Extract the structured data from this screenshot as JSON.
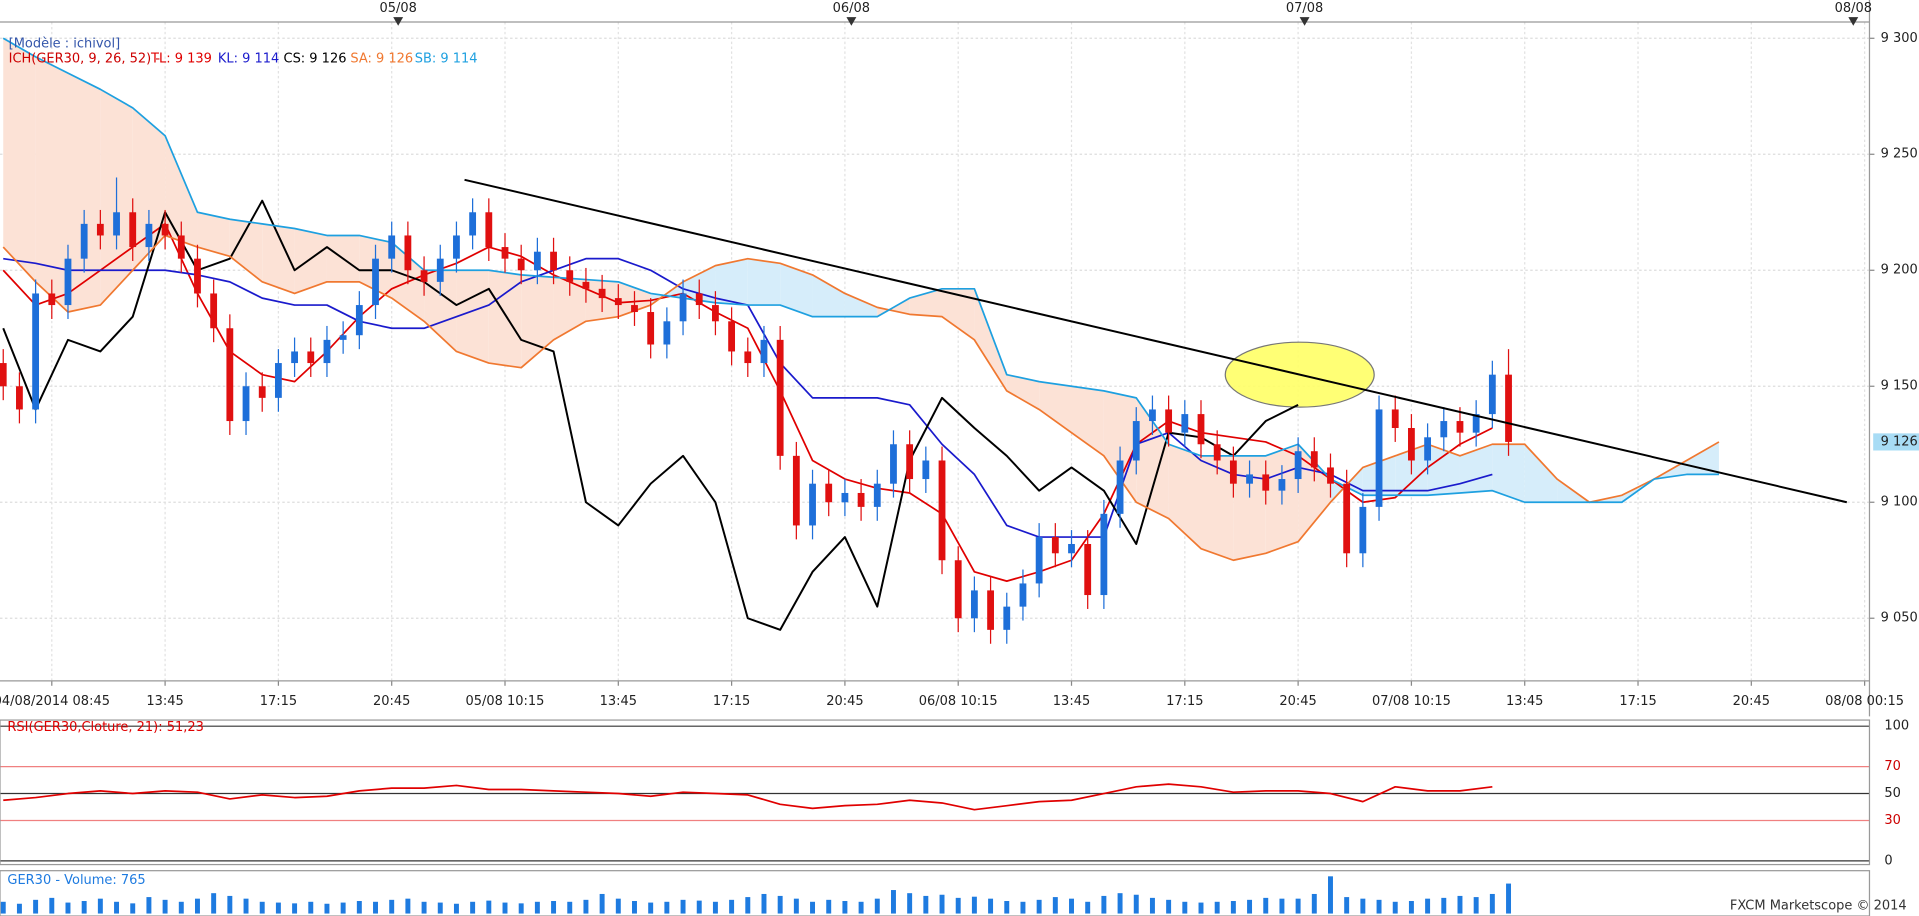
{
  "chart_data": {
    "type": "candlestick",
    "header": "[Modèle : ichivol]",
    "indicator": "ICH(GER30, 9, 26, 52) -",
    "footer": "FXCM Marketscope © 2014",
    "xlim": [
      -3.2,
      112.3
    ],
    "ylim": [
      9023,
      9307
    ],
    "grid": true,
    "yticks": [
      {
        "value": 9050,
        "label": "9 050"
      },
      {
        "value": 9100,
        "label": "9 100"
      },
      {
        "value": 9150,
        "label": "9 150"
      },
      {
        "value": 9200,
        "label": "9 200"
      },
      {
        "value": 9250,
        "label": "9 250"
      },
      {
        "value": 9300,
        "label": "9 300"
      }
    ],
    "xticks": [
      {
        "value": 0,
        "label": "04/08/2014 08:45"
      },
      {
        "value": 7,
        "label": "13:45"
      },
      {
        "value": 14,
        "label": "17:15"
      },
      {
        "value": 21,
        "label": "20:45"
      },
      {
        "value": 28,
        "label": "05/08 10:15"
      },
      {
        "value": 35,
        "label": "13:45"
      },
      {
        "value": 42,
        "label": "17:15"
      },
      {
        "value": 49,
        "label": "20:45"
      },
      {
        "value": 56,
        "label": "06/08 10:15"
      },
      {
        "value": 63,
        "label": "13:45"
      },
      {
        "value": 70,
        "label": "17:15"
      },
      {
        "value": 77,
        "label": "20:45"
      },
      {
        "value": 84,
        "label": "07/08 10:15"
      },
      {
        "value": 91,
        "label": "13:45"
      },
      {
        "value": 98,
        "label": "17:15"
      },
      {
        "value": 105,
        "label": "20:45"
      },
      {
        "value": 112,
        "label": "08/08 00:15"
      }
    ],
    "top_ticks": [
      {
        "value": 21.4,
        "label": "05/08"
      },
      {
        "value": 49.4,
        "label": "06/08"
      },
      {
        "value": 77.4,
        "label": "07/08"
      },
      {
        "value": 111.3,
        "label": "08/08"
      }
    ],
    "last_price": {
      "value": 9126,
      "label": "9 126",
      "color": "#a8dcf5"
    },
    "candles": {
      "up_color": "#1e6fd9",
      "down_color": "#e01010",
      "x": [
        -3,
        -2,
        -1,
        0,
        1,
        2,
        3,
        4,
        5,
        6,
        7,
        8,
        9,
        10,
        11,
        12,
        13,
        14,
        15,
        16,
        17,
        18,
        19,
        20,
        21,
        22,
        23,
        24,
        25,
        26,
        27,
        28,
        29,
        30,
        31,
        32,
        33,
        34,
        35,
        36,
        37,
        38,
        39,
        40,
        41,
        42,
        43,
        44,
        45,
        46,
        47,
        48,
        49,
        50,
        51,
        52,
        53,
        54,
        55,
        56,
        57,
        58,
        59,
        60,
        61,
        62,
        63,
        64,
        65,
        66,
        67,
        68,
        69,
        70,
        71,
        72,
        73,
        74,
        75,
        76,
        77,
        78,
        79,
        80,
        81,
        82,
        83,
        84,
        85,
        86,
        87,
        88,
        89,
        90
      ],
      "open": [
        9160,
        9150,
        9140,
        9190,
        9185,
        9205,
        9220,
        9215,
        9225,
        9210,
        9220,
        9215,
        9205,
        9190,
        9175,
        9135,
        9150,
        9145,
        9160,
        9165,
        9160,
        9170,
        9172,
        9185,
        9205,
        9215,
        9200,
        9195,
        9205,
        9215,
        9225,
        9210,
        9205,
        9200,
        9208,
        9200,
        9195,
        9192,
        9188,
        9185,
        9182,
        9168,
        9178,
        9190,
        9185,
        9178,
        9165,
        9160,
        9170,
        9120,
        9090,
        9108,
        9100,
        9104,
        9098,
        9108,
        9125,
        9110,
        9118,
        9075,
        9050,
        9062,
        9045,
        9055,
        9065,
        9085,
        9078,
        9082,
        9060,
        9095,
        9118,
        9135,
        9140,
        9130,
        9138,
        9125,
        9118,
        9108,
        9112,
        9105,
        9110,
        9122,
        9115,
        9108,
        9078,
        9098,
        9140,
        9132,
        9118,
        9128,
        9135,
        9130,
        9138,
        9155
      ],
      "high": [
        9166,
        9156,
        9196,
        9196,
        9211,
        9226,
        9226,
        9240,
        9231,
        9226,
        9226,
        9221,
        9211,
        9196,
        9181,
        9156,
        9156,
        9166,
        9171,
        9171,
        9176,
        9178,
        9191,
        9211,
        9221,
        9221,
        9206,
        9211,
        9221,
        9231,
        9231,
        9216,
        9211,
        9214,
        9214,
        9206,
        9201,
        9198,
        9194,
        9191,
        9188,
        9184,
        9196,
        9196,
        9191,
        9184,
        9171,
        9176,
        9176,
        9126,
        9114,
        9114,
        9110,
        9110,
        9114,
        9131,
        9131,
        9124,
        9124,
        9081,
        9068,
        9068,
        9061,
        9071,
        9091,
        9091,
        9088,
        9088,
        9101,
        9124,
        9141,
        9146,
        9146,
        9144,
        9144,
        9131,
        9124,
        9118,
        9118,
        9116,
        9128,
        9128,
        9121,
        9114,
        9104,
        9146,
        9146,
        9138,
        9134,
        9141,
        9141,
        9144,
        9161,
        9166
      ],
      "low": [
        9144,
        9134,
        9134,
        9179,
        9179,
        9199,
        9209,
        9209,
        9204,
        9204,
        9209,
        9199,
        9184,
        9169,
        9129,
        9129,
        9139,
        9139,
        9154,
        9154,
        9154,
        9164,
        9166,
        9179,
        9199,
        9194,
        9189,
        9189,
        9199,
        9209,
        9204,
        9199,
        9194,
        9194,
        9194,
        9189,
        9186,
        9182,
        9179,
        9176,
        9162,
        9162,
        9172,
        9179,
        9172,
        9159,
        9154,
        9154,
        9114,
        9084,
        9084,
        9094,
        9094,
        9092,
        9092,
        9102,
        9104,
        9104,
        9069,
        9044,
        9044,
        9039,
        9039,
        9049,
        9059,
        9072,
        9072,
        9054,
        9054,
        9089,
        9112,
        9129,
        9124,
        9124,
        9119,
        9112,
        9102,
        9102,
        9099,
        9099,
        9104,
        9109,
        9102,
        9072,
        9072,
        9092,
        9126,
        9112,
        9112,
        9122,
        9124,
        9124,
        9132,
        9120
      ],
      "close": [
        9150,
        9140,
        9190,
        9185,
        9205,
        9220,
        9215,
        9225,
        9210,
        9220,
        9215,
        9205,
        9190,
        9175,
        9135,
        9150,
        9145,
        9160,
        9165,
        9160,
        9170,
        9172,
        9185,
        9205,
        9215,
        9200,
        9195,
        9205,
        9215,
        9225,
        9210,
        9205,
        9200,
        9208,
        9200,
        9195,
        9192,
        9188,
        9185,
        9182,
        9168,
        9178,
        9190,
        9185,
        9178,
        9165,
        9160,
        9170,
        9120,
        9090,
        9108,
        9100,
        9104,
        9098,
        9108,
        9125,
        9110,
        9118,
        9075,
        9050,
        9062,
        9045,
        9055,
        9065,
        9085,
        9078,
        9082,
        9060,
        9095,
        9118,
        9135,
        9140,
        9130,
        9138,
        9125,
        9118,
        9108,
        9112,
        9105,
        9110,
        9122,
        9115,
        9108,
        9078,
        9098,
        9140,
        9132,
        9118,
        9128,
        9135,
        9130,
        9138,
        9155,
        9126
      ]
    },
    "x": [
      -3,
      -1,
      1,
      3,
      5,
      7,
      9,
      11,
      13,
      15,
      17,
      19,
      21,
      23,
      25,
      27,
      29,
      31,
      33,
      35,
      37,
      39,
      41,
      43,
      45,
      47,
      49,
      51,
      53,
      55,
      57,
      59,
      61,
      63,
      65,
      67,
      69,
      71,
      73,
      75,
      77,
      79,
      81,
      83,
      85,
      87,
      89,
      91,
      93,
      95,
      97,
      99,
      101,
      103
    ],
    "series": [
      {
        "name": "TL: 9 139",
        "color": "#e00000",
        "values": [
          9200,
          9185,
          9190,
          9200,
          9210,
          9220,
          9190,
          9165,
          9155,
          9152,
          9165,
          9180,
          9192,
          9198,
          9203,
          9210,
          9206,
          9198,
          9192,
          9186,
          9187,
          9190,
          9182,
          9175,
          9148,
          9118,
          9110,
          9106,
          9104,
          9095,
          9070,
          9066,
          9070,
          9075,
          9095,
          9125,
          9135,
          9130,
          9128,
          9126,
          9120,
          9110,
          9100,
          9102,
          9115,
          9125,
          9132,
          null,
          null,
          null,
          null,
          null,
          null,
          null
        ]
      },
      {
        "name": "KL: 9 114",
        "color": "#1a1acc",
        "values": [
          9205,
          9203,
          9200,
          9200,
          9200,
          9200,
          9198,
          9195,
          9188,
          9185,
          9185,
          9178,
          9175,
          9175,
          9180,
          9185,
          9195,
          9200,
          9205,
          9205,
          9200,
          9192,
          9188,
          9185,
          9160,
          9145,
          9145,
          9145,
          9142,
          9125,
          9112,
          9090,
          9085,
          9085,
          9085,
          9125,
          9130,
          9118,
          9112,
          9110,
          9115,
          9112,
          9105,
          9105,
          9105,
          9108,
          9112,
          null,
          null,
          null,
          null,
          null,
          null,
          null
        ]
      },
      {
        "name": "CS: 9 126",
        "color": "#000000",
        "values": [
          9175,
          9140,
          9170,
          9165,
          9180,
          9225,
          9200,
          9205,
          9230,
          9200,
          9210,
          9200,
          9200,
          9195,
          9185,
          9192,
          9170,
          9165,
          9100,
          9090,
          9108,
          9120,
          9100,
          9050,
          9045,
          9070,
          9085,
          9055,
          9118,
          9145,
          9132,
          9120,
          9105,
          9115,
          9105,
          9082,
          9130,
          9128,
          9120,
          9135,
          9142,
          null,
          null,
          null,
          null,
          null,
          null,
          null,
          null,
          null,
          null,
          null,
          null,
          null
        ]
      },
      {
        "name": "SA: 9 126",
        "color": "#f07830",
        "values": [
          9210,
          9195,
          9182,
          9185,
          9200,
          9215,
          9210,
          9206,
          9195,
          9190,
          9195,
          9195,
          9188,
          9178,
          9165,
          9160,
          9158,
          9170,
          9178,
          9180,
          9185,
          9195,
          9202,
          9205,
          9203,
          9198,
          9190,
          9184,
          9181,
          9180,
          9170,
          9148,
          9140,
          9130,
          9120,
          9100,
          9093,
          9080,
          9075,
          9078,
          9083,
          9100,
          9115,
          9120,
          9125,
          9120,
          9125,
          9125,
          9110,
          9100,
          9103,
          9110,
          9118,
          9126
        ]
      },
      {
        "name": "SB: 9 114",
        "color": "#1ea0e0",
        "values": [
          9300,
          9292,
          9285,
          9278,
          9270,
          9258,
          9225,
          9222,
          9220,
          9218,
          9215,
          9215,
          9212,
          9200,
          9200,
          9200,
          9198,
          9197,
          9196,
          9195,
          9190,
          9188,
          9186,
          9185,
          9185,
          9180,
          9180,
          9180,
          9188,
          9192,
          9192,
          9155,
          9152,
          9150,
          9148,
          9145,
          9125,
          9120,
          9120,
          9120,
          9125,
          9110,
          9103,
          9103,
          9103,
          9104,
          9105,
          9100,
          9100,
          9100,
          9100,
          9110,
          9112,
          9112
        ]
      }
    ],
    "cloud_colors": {
      "up": "#d6edfa",
      "down": "#fce2d6"
    },
    "trendline": {
      "x": [
        25.5,
        110.9
      ],
      "y": [
        9239,
        9100
      ],
      "color": "#000000"
    },
    "highlight": {
      "x": 77.1,
      "y": 9155,
      "rx": 4.6,
      "ry": 14,
      "color": "#ffff66"
    },
    "rsi": {
      "title": "RSI(GER30,Cloture, 21): 51,23",
      "color": "#e00000",
      "ylim": [
        0,
        100
      ],
      "yticks": [
        0,
        30,
        50,
        70,
        100
      ],
      "x": [
        -3,
        -1,
        1,
        3,
        5,
        7,
        9,
        11,
        13,
        15,
        17,
        19,
        21,
        23,
        25,
        27,
        29,
        31,
        33,
        35,
        37,
        39,
        41,
        43,
        45,
        47,
        49,
        51,
        53,
        55,
        57,
        59,
        61,
        63,
        65,
        67,
        69,
        71,
        73,
        75,
        77,
        79,
        81,
        83,
        85,
        87,
        89
      ],
      "values": [
        45,
        47,
        50,
        52,
        50,
        52,
        51,
        46,
        49,
        47,
        48,
        52,
        54,
        54,
        56,
        53,
        53,
        52,
        51,
        50,
        48,
        51,
        50,
        49,
        42,
        39,
        41,
        42,
        45,
        43,
        38,
        41,
        44,
        45,
        50,
        55,
        57,
        55,
        51,
        52,
        52,
        50,
        44,
        55,
        52,
        52,
        55
      ]
    },
    "volume": {
      "title": "GER30 - Volume: 765",
      "color": "#1e7be0",
      "ylim": [
        0,
        1000
      ],
      "values": [
        300,
        250,
        350,
        400,
        280,
        320,
        380,
        300,
        260,
        420,
        350,
        300,
        380,
        520,
        450,
        380,
        300,
        280,
        260,
        300,
        250,
        280,
        320,
        300,
        350,
        380,
        300,
        280,
        250,
        300,
        330,
        280,
        260,
        300,
        320,
        300,
        350,
        500,
        380,
        320,
        280,
        300,
        350,
        330,
        300,
        350,
        420,
        500,
        450,
        380,
        300,
        350,
        320,
        300,
        380,
        600,
        520,
        450,
        480,
        400,
        430,
        380,
        320,
        300,
        350,
        420,
        380,
        300,
        450,
        520,
        480,
        400,
        350,
        300,
        280,
        300,
        320,
        350,
        400,
        380,
        380,
        500,
        950,
        420,
        380,
        350,
        300,
        320,
        380,
        400,
        450,
        420,
        500,
        765
      ]
    }
  }
}
